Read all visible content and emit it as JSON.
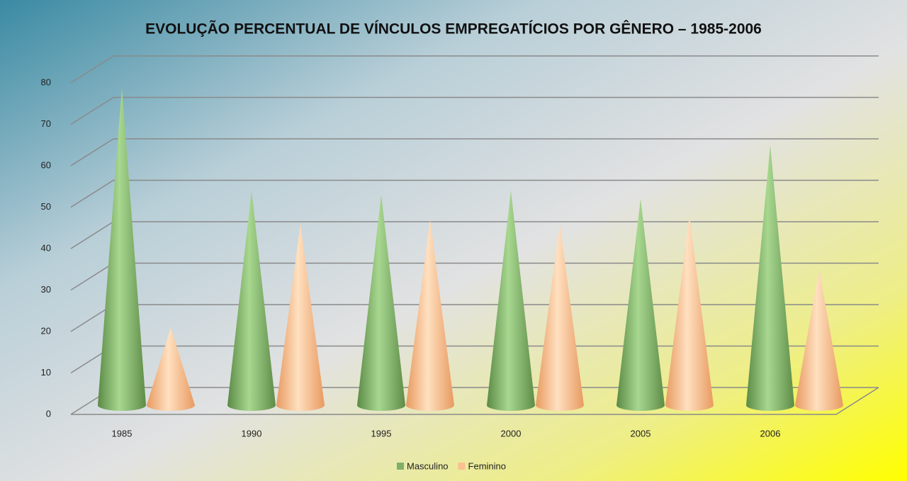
{
  "chart_data": {
    "type": "cone",
    "title": "EVOLUÇÃO PERCENTUAL DE VÍNCULOS EMPREGATÍCIOS POR GÊNERO – 1985-2006",
    "categories": [
      "1985",
      "1990",
      "1995",
      "2000",
      "2005",
      "2006"
    ],
    "series": [
      {
        "name": "Masculino",
        "color": "#7fb069",
        "values": [
          79,
          54,
          53,
          54,
          52,
          65
        ]
      },
      {
        "name": "Feminino",
        "color": "#fac090",
        "values": [
          21,
          46,
          47,
          46,
          48,
          35
        ]
      }
    ],
    "ylim": [
      0,
      80
    ],
    "yticks": [
      0,
      10,
      20,
      30,
      40,
      50,
      60,
      70,
      80
    ],
    "grid": true,
    "legend": "bottom"
  }
}
